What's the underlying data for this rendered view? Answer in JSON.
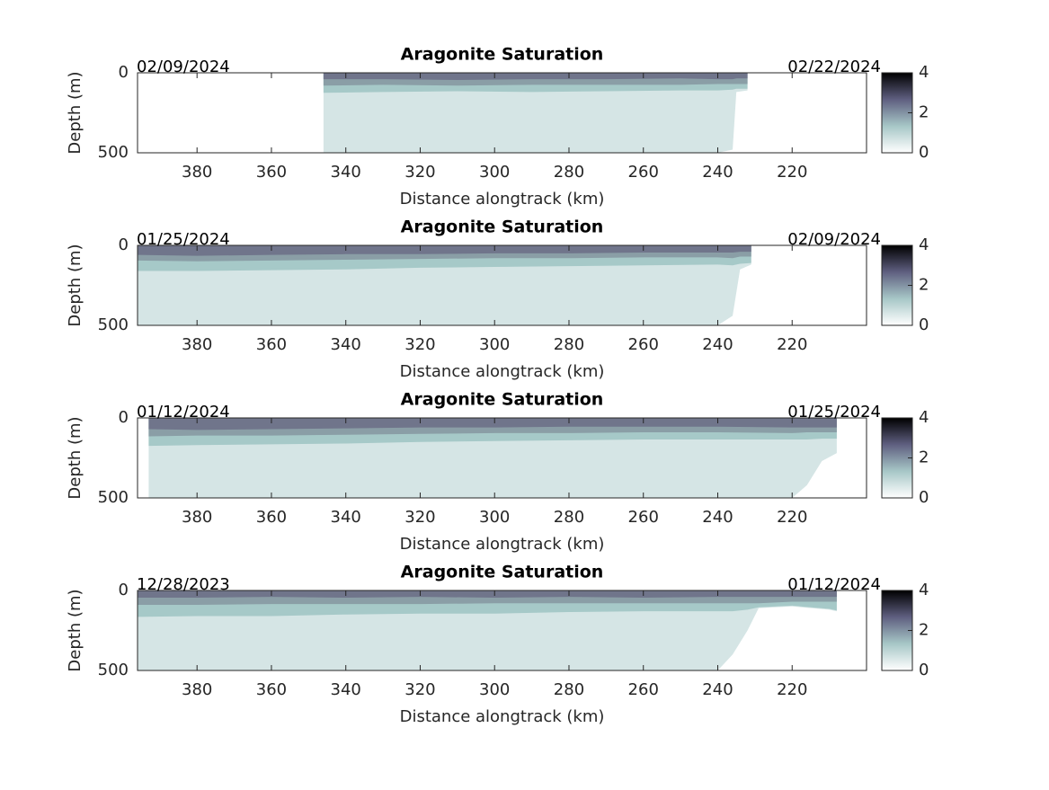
{
  "chart_data": [
    {
      "type": "contour",
      "title": "Aragonite Saturation",
      "date_start": "02/09/2024",
      "date_end": "02/22/2024",
      "xlabel": "Distance alongtrack (km)",
      "ylabel": "Depth (m)",
      "xlim": [
        396,
        200
      ],
      "xticks": [
        380,
        360,
        340,
        320,
        300,
        280,
        260,
        240,
        220
      ],
      "ylim": [
        0,
        500
      ],
      "yticks": [
        0,
        500
      ],
      "x": [
        346,
        330,
        310,
        290,
        270,
        250,
        240,
        236,
        235,
        232
      ],
      "series": [
        {
          "color": "#d5e5e5",
          "values": [
            500,
            500,
            500,
            500,
            500,
            500,
            500,
            480,
            120,
            110
          ]
        },
        {
          "color": "#a6c9c8",
          "values": [
            125,
            120,
            115,
            120,
            115,
            110,
            110,
            105,
            100,
            100
          ]
        },
        {
          "color": "#8a9ea6",
          "values": [
            80,
            75,
            80,
            75,
            75,
            75,
            70,
            70,
            70,
            70
          ]
        },
        {
          "color": "#70758b",
          "values": [
            40,
            40,
            45,
            40,
            40,
            35,
            40,
            40,
            35,
            35
          ]
        }
      ],
      "colorbar": {
        "lim": [
          0,
          4
        ],
        "ticks": [
          0,
          2,
          4
        ],
        "colors": [
          "#ffffff",
          "#a7c7c7",
          "#5f5f80",
          "#000000"
        ]
      }
    },
    {
      "type": "contour",
      "title": "Aragonite Saturation",
      "date_start": "01/25/2024",
      "date_end": "02/09/2024",
      "xlabel": "Distance alongtrack (km)",
      "ylabel": "Depth (m)",
      "xlim": [
        396,
        200
      ],
      "xticks": [
        380,
        360,
        340,
        320,
        300,
        280,
        260,
        240,
        220
      ],
      "ylim": [
        0,
        500
      ],
      "yticks": [
        0,
        500
      ],
      "x": [
        396,
        380,
        360,
        340,
        320,
        300,
        280,
        260,
        240,
        236,
        234,
        231
      ],
      "series": [
        {
          "color": "#d5e5e5",
          "values": [
            500,
            500,
            500,
            500,
            500,
            500,
            500,
            500,
            500,
            440,
            150,
            120
          ]
        },
        {
          "color": "#a6c9c8",
          "values": [
            160,
            160,
            155,
            150,
            140,
            135,
            130,
            125,
            120,
            125,
            115,
            110
          ]
        },
        {
          "color": "#8a9ea6",
          "values": [
            95,
            100,
            95,
            90,
            85,
            80,
            80,
            75,
            75,
            80,
            70,
            70
          ]
        },
        {
          "color": "#70758b",
          "values": [
            60,
            65,
            60,
            55,
            55,
            50,
            50,
            45,
            45,
            45,
            40,
            40
          ]
        }
      ],
      "colorbar": {
        "lim": [
          0,
          4
        ],
        "ticks": [
          0,
          2,
          4
        ],
        "colors": [
          "#ffffff",
          "#a7c7c7",
          "#5f5f80",
          "#000000"
        ]
      }
    },
    {
      "type": "contour",
      "title": "Aragonite Saturation",
      "date_start": "01/12/2024",
      "date_end": "01/25/2024",
      "xlabel": "Distance alongtrack (km)",
      "ylabel": "Depth (m)",
      "xlim": [
        396,
        200
      ],
      "xticks": [
        380,
        360,
        340,
        320,
        300,
        280,
        260,
        240,
        220
      ],
      "ylim": [
        0,
        500
      ],
      "yticks": [
        0,
        500
      ],
      "x": [
        393,
        380,
        360,
        340,
        320,
        300,
        280,
        260,
        240,
        220,
        216,
        212,
        208
      ],
      "series": [
        {
          "color": "#d5e5e5",
          "values": [
            500,
            500,
            500,
            500,
            500,
            500,
            500,
            500,
            500,
            500,
            420,
            270,
            220
          ]
        },
        {
          "color": "#a6c9c8",
          "values": [
            175,
            170,
            165,
            160,
            150,
            145,
            140,
            135,
            135,
            135,
            135,
            130,
            130
          ]
        },
        {
          "color": "#8a9ea6",
          "values": [
            115,
            110,
            110,
            105,
            100,
            95,
            95,
            90,
            90,
            95,
            90,
            90,
            90
          ]
        },
        {
          "color": "#70758b",
          "values": [
            70,
            75,
            70,
            65,
            60,
            60,
            55,
            55,
            55,
            60,
            60,
            60,
            60
          ]
        }
      ],
      "colorbar": {
        "lim": [
          0,
          4
        ],
        "ticks": [
          0,
          2,
          4
        ],
        "colors": [
          "#ffffff",
          "#a7c7c7",
          "#5f5f80",
          "#000000"
        ]
      }
    },
    {
      "type": "contour",
      "title": "Aragonite Saturation",
      "date_start": "12/28/2023",
      "date_end": "01/12/2024",
      "xlabel": "Distance alongtrack (km)",
      "ylabel": "Depth (m)",
      "xlim": [
        396,
        200
      ],
      "xticks": [
        380,
        360,
        340,
        320,
        300,
        280,
        260,
        240,
        220
      ],
      "ylim": [
        0,
        500
      ],
      "yticks": [
        0,
        500
      ],
      "x": [
        396,
        380,
        360,
        340,
        320,
        300,
        280,
        260,
        240,
        236,
        232,
        229,
        220,
        210,
        208
      ],
      "series": [
        {
          "color": "#d5e5e5",
          "values": [
            500,
            500,
            500,
            500,
            500,
            500,
            500,
            500,
            500,
            400,
            250,
            110,
            100,
            120,
            130
          ]
        },
        {
          "color": "#a6c9c8",
          "values": [
            165,
            160,
            160,
            150,
            145,
            145,
            135,
            130,
            130,
            130,
            120,
            105,
            95,
            115,
            125
          ]
        },
        {
          "color": "#8a9ea6",
          "values": [
            90,
            90,
            85,
            85,
            85,
            80,
            80,
            80,
            80,
            80,
            80,
            80,
            70,
            70,
            70
          ]
        },
        {
          "color": "#70758b",
          "values": [
            45,
            45,
            40,
            45,
            40,
            45,
            40,
            45,
            40,
            40,
            40,
            40,
            40,
            40,
            40
          ]
        }
      ],
      "colorbar": {
        "lim": [
          0,
          4
        ],
        "ticks": [
          0,
          2,
          4
        ],
        "colors": [
          "#ffffff",
          "#a7c7c7",
          "#5f5f80",
          "#000000"
        ]
      }
    }
  ]
}
